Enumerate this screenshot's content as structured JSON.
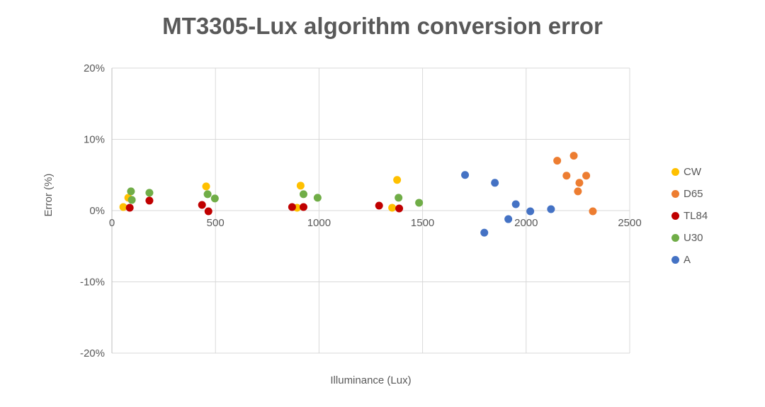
{
  "chart_data": {
    "type": "scatter",
    "title": "MT3305-Lux algorithm conversion error",
    "xlabel": "Illuminance (Lux)",
    "ylabel": "Error (%)",
    "xlim": [
      0,
      2500
    ],
    "ylim": [
      -20,
      20
    ],
    "x_tick_values": [
      0,
      500,
      1000,
      1500,
      2000,
      2500
    ],
    "x_tick_labels": [
      "0",
      "500",
      "1000",
      "1500",
      "2000",
      "2500"
    ],
    "y_tick_values": [
      -20,
      -10,
      0,
      10,
      20
    ],
    "y_tick_labels": [
      "-20%",
      "-10%",
      "0%",
      "10%",
      "20%"
    ],
    "grid": true,
    "gridline_color": "#d9d9d9",
    "axis_line_color": "#bfbfbf",
    "tick_label_color": "#595959",
    "title_color": "#595959",
    "legend_position": "right",
    "marker_radius": 5.5,
    "series": [
      {
        "name": "CW",
        "color": "#FFC000",
        "points": [
          [
            55,
            0.5
          ],
          [
            79,
            1.8
          ],
          [
            455,
            3.4
          ],
          [
            894,
            0.4
          ],
          [
            911,
            3.5
          ],
          [
            1353,
            0.4
          ],
          [
            1377,
            4.3
          ]
        ]
      },
      {
        "name": "D65",
        "color": "#ED7D31",
        "points": [
          [
            2150,
            7.0
          ],
          [
            2195,
            4.9
          ],
          [
            2230,
            7.7
          ],
          [
            2250,
            2.7
          ],
          [
            2257,
            3.9
          ],
          [
            2290,
            4.9
          ],
          [
            2322,
            -0.1
          ]
        ]
      },
      {
        "name": "TL84",
        "color": "#C00000",
        "points": [
          [
            86,
            0.4
          ],
          [
            181,
            1.4
          ],
          [
            435,
            0.8
          ],
          [
            466,
            -0.1
          ],
          [
            870,
            0.5
          ],
          [
            925,
            0.5
          ],
          [
            1290,
            0.7
          ],
          [
            1387,
            0.3
          ]
        ]
      },
      {
        "name": "U30",
        "color": "#70AD47",
        "points": [
          [
            92,
            2.7
          ],
          [
            96,
            1.5
          ],
          [
            181,
            2.5
          ],
          [
            462,
            2.3
          ],
          [
            497,
            1.7
          ],
          [
            925,
            2.3
          ],
          [
            993,
            1.8
          ],
          [
            1384,
            1.8
          ],
          [
            1483,
            1.1
          ]
        ]
      },
      {
        "name": "A",
        "color": "#4472C4",
        "points": [
          [
            1705,
            5.0
          ],
          [
            1798,
            -3.1
          ],
          [
            1849,
            3.9
          ],
          [
            1914,
            -1.2
          ],
          [
            1950,
            0.9
          ],
          [
            2020,
            -0.1
          ],
          [
            2120,
            0.2
          ]
        ]
      }
    ]
  }
}
